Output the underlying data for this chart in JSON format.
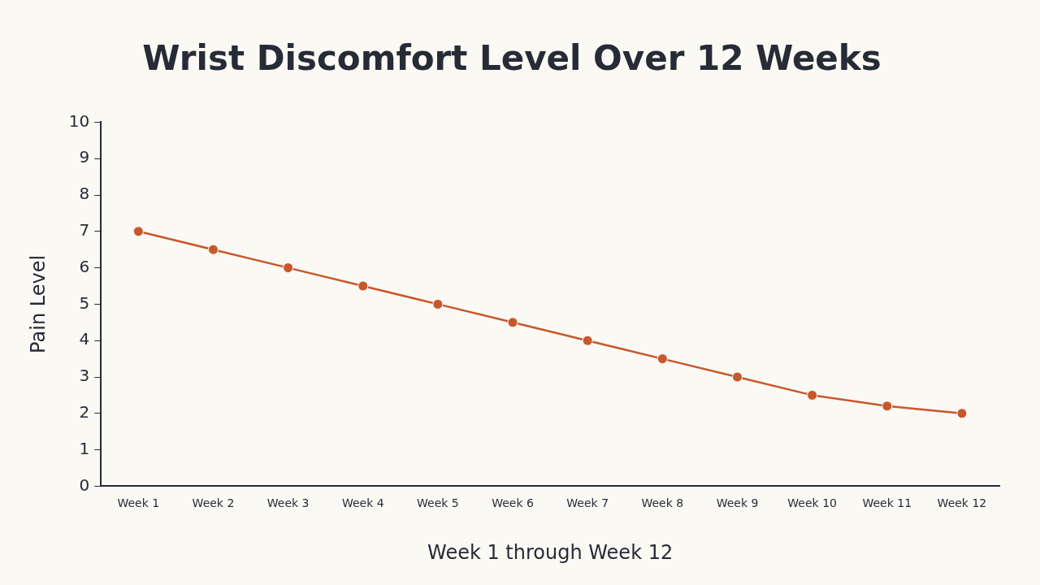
{
  "chart_data": {
    "type": "line",
    "title": "Wrist Discomfort Level Over 12 Weeks",
    "xlabel": "Week 1 through Week 12",
    "ylabel": "Pain Level",
    "categories": [
      "Week 1",
      "Week 2",
      "Week 3",
      "Week 4",
      "Week 5",
      "Week 6",
      "Week 7",
      "Week 8",
      "Week 9",
      "Week 10",
      "Week 11",
      "Week 12"
    ],
    "series": [
      {
        "color": "#c8582a",
        "values": [
          7,
          6.5,
          6,
          5.5,
          5,
          4.5,
          4,
          3.5,
          3,
          2.5,
          2.2,
          2
        ]
      }
    ],
    "ylim": [
      0,
      10
    ],
    "yticks": [
      0,
      1,
      2,
      3,
      4,
      5,
      6,
      7,
      8,
      9,
      10
    ],
    "grid": false,
    "legend": false,
    "marker": "circle",
    "line_style": "solid"
  }
}
